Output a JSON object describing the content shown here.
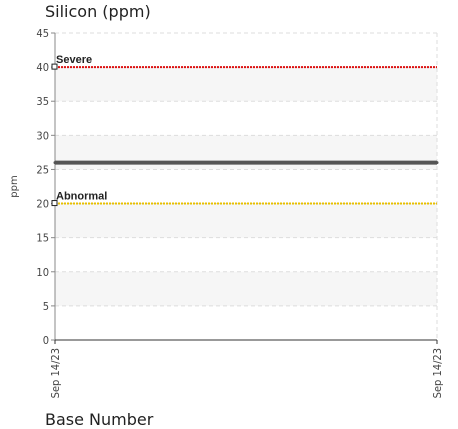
{
  "chart_data": {
    "type": "line",
    "title": "Silicon (ppm)",
    "xlabel": "Base Number",
    "ylabel": "ppm",
    "ylim": [
      0,
      45
    ],
    "yticks": [
      0,
      5,
      10,
      15,
      20,
      25,
      30,
      35,
      40,
      45
    ],
    "categories": [
      "Sep 14/23",
      "Sep 14/23"
    ],
    "series": [
      {
        "values": [
          26,
          26
        ],
        "color": "#555555"
      }
    ],
    "thresholds": [
      {
        "label": "Severe",
        "value": 40,
        "color": "#dd1111"
      },
      {
        "label": "Abnormal",
        "value": 20,
        "color": "#e8c000"
      }
    ],
    "grid": true
  }
}
